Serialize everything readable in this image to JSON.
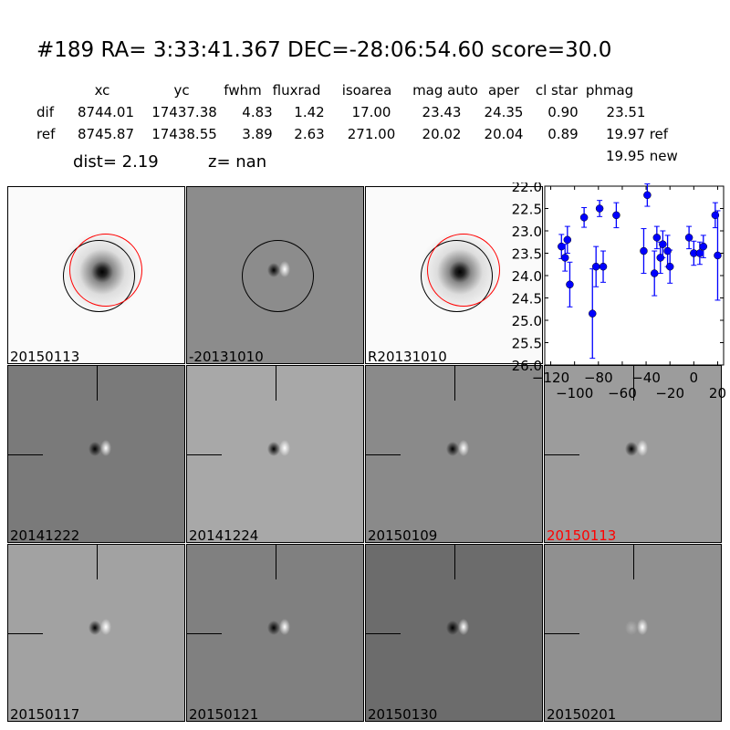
{
  "title": "#189   RA= 3:33:41.367 DEC=-28:06:54.60       score=30.0",
  "table": {
    "headers": [
      "xc",
      "yc",
      "fwhm",
      "fluxrad",
      "isoarea",
      "mag auto",
      "aper",
      "cl star",
      "phmag"
    ],
    "dif": {
      "label": "dif",
      "values": [
        "8744.01",
        "17437.38",
        "4.83",
        "1.42",
        "17.00",
        "23.43",
        "24.35",
        "0.90",
        "23.51"
      ]
    },
    "ref": {
      "label": "ref",
      "values": [
        "8745.87",
        "17438.55",
        "3.89",
        "2.63",
        "271.00",
        "20.02",
        "20.04",
        "0.89",
        "19.97 ref"
      ]
    },
    "new_phmag": "19.95 new",
    "dist": "dist=  2.19",
    "z": "z=   nan"
  },
  "stamps": [
    {
      "label": "20150113",
      "kind": "new"
    },
    {
      "label": "-20131010",
      "kind": "diff"
    },
    {
      "label": "R20131010",
      "kind": "ref"
    },
    {
      "label": "20141222",
      "kind": "epoch"
    },
    {
      "label": "20141224",
      "kind": "epoch"
    },
    {
      "label": "20150109",
      "kind": "epoch"
    },
    {
      "label": "20150113",
      "kind": "epoch",
      "highlight": "#ff0000"
    },
    {
      "label": "20150117",
      "kind": "epoch"
    },
    {
      "label": "20150121",
      "kind": "epoch"
    },
    {
      "label": "20150130",
      "kind": "epoch"
    },
    {
      "label": "20150201",
      "kind": "epoch"
    }
  ],
  "chart_data": {
    "type": "scatter",
    "marker_color": "#0000ff",
    "errorbars": true,
    "xlim": [
      -125,
      25
    ],
    "ylim": [
      26.0,
      22.0
    ],
    "y_inverted": true,
    "xticks": [
      "-120",
      "-100",
      "-80",
      "-60",
      "-40",
      "-20",
      "0",
      "20"
    ],
    "yticks": [
      "22.0",
      "22.5",
      "23.0",
      "23.5",
      "24.0",
      "24.5",
      "25.0",
      "25.5",
      "26.0"
    ],
    "x": [
      -111,
      -108,
      -106,
      -104,
      -92,
      -85,
      -82,
      -79,
      -76,
      -65,
      -42,
      -39,
      -33,
      -31,
      -28,
      -26,
      -22,
      -20,
      -4,
      0,
      5,
      8,
      18,
      20
    ],
    "y": [
      23.35,
      23.6,
      23.2,
      24.2,
      22.7,
      24.85,
      23.8,
      22.5,
      23.8,
      22.65,
      23.45,
      22.2,
      23.95,
      23.15,
      23.6,
      23.3,
      23.45,
      23.8,
      23.15,
      23.5,
      23.5,
      23.35,
      22.65,
      23.55
    ],
    "yerr": [
      0.27,
      0.3,
      0.3,
      0.5,
      0.22,
      1.0,
      0.45,
      0.18,
      0.35,
      0.28,
      0.5,
      0.25,
      0.5,
      0.25,
      0.35,
      0.3,
      0.35,
      0.37,
      0.25,
      0.27,
      0.25,
      0.25,
      0.28,
      1.0
    ]
  }
}
